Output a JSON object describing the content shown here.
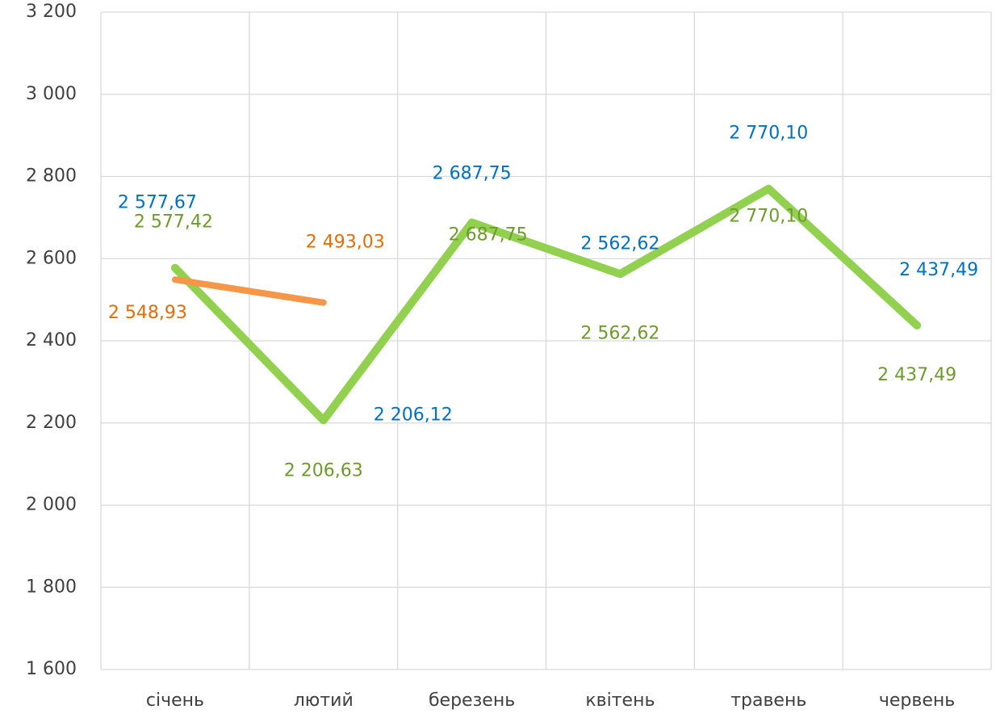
{
  "chart_data": {
    "type": "line",
    "categories": [
      "січень",
      "лютий",
      "березень",
      "квітень",
      "травень",
      "червень"
    ],
    "ylim": [
      1600,
      3200
    ],
    "yticks": [
      {
        "value": 1600,
        "label": "1 600"
      },
      {
        "value": 1800,
        "label": "1 800"
      },
      {
        "value": 2000,
        "label": "2 000"
      },
      {
        "value": 2200,
        "label": "2 200"
      },
      {
        "value": 2400,
        "label": "2 400"
      },
      {
        "value": 2600,
        "label": "2 600"
      },
      {
        "value": 2800,
        "label": "2 800"
      },
      {
        "value": 3000,
        "label": "3 000"
      },
      {
        "value": 3200,
        "label": "3 200"
      }
    ],
    "grid": true,
    "series": [
      {
        "color": "#0070c0",
        "label_color": "#0070c0",
        "values": [
          2577.67,
          2206.12,
          2687.75,
          2562.62,
          2770.1,
          2437.49
        ],
        "value_labels": [
          "2 577,67",
          "2 206,12",
          "2 687,75",
          "2 562,62",
          "2 770,10",
          "2 437,49"
        ]
      },
      {
        "color": "#92d050",
        "label_color": "#6f9a2e",
        "values": [
          2577.42,
          2206.63,
          2687.75,
          2562.62,
          2770.1,
          2437.49
        ],
        "value_labels": [
          "2 577,42",
          "2 206,63",
          "2 687,75",
          "2 562,62",
          "2 770,10",
          "2 437,49"
        ]
      },
      {
        "color": "#f79646",
        "label_color": "#e46c0a",
        "values": [
          2548.93,
          2493.03,
          null,
          null,
          null,
          null
        ],
        "value_labels": [
          "2 548,93",
          "2 493,03",
          null,
          null,
          null,
          null
        ]
      }
    ]
  }
}
